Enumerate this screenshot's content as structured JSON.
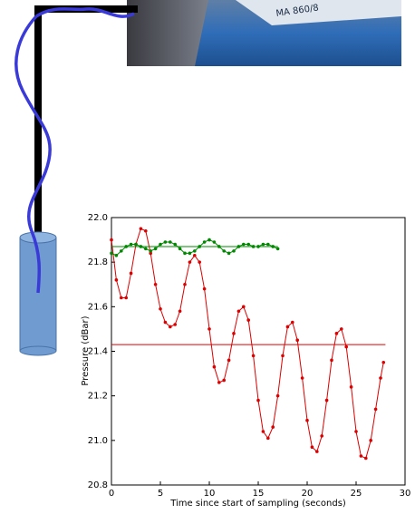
{
  "photo_label": "MA 860/8",
  "chart_data": {
    "type": "line",
    "xlabel": "Time since start of sampling (seconds)",
    "ylabel": "Pressure (dBar)",
    "xlim": [
      0,
      30
    ],
    "xticks": [
      0,
      5,
      10,
      15,
      20,
      25,
      30
    ],
    "ylim": [
      20.8,
      22.0
    ],
    "yticks": [
      20.8,
      {
        "value": 21,
        "label": "21.0"
      },
      21.2,
      21.4,
      21.6,
      21.8,
      {
        "value": 22,
        "label": "22.0"
      }
    ],
    "grid": false,
    "series": [
      {
        "color": "#dd0000",
        "markers": true,
        "x": [
          0,
          0.5,
          1,
          1.5,
          2,
          2.5,
          3,
          3.5,
          4,
          4.5,
          5,
          5.5,
          6,
          6.5,
          7,
          7.5,
          8,
          8.5,
          9,
          9.5,
          10,
          10.5,
          11,
          11.5,
          12,
          12.5,
          13,
          13.5,
          14,
          14.5,
          15,
          15.5,
          16,
          16.5,
          17,
          17.5,
          18,
          18.5,
          19,
          19.5,
          20,
          20.5,
          21,
          21.5,
          22,
          22.5,
          23,
          23.5,
          24,
          24.5,
          25,
          25.5,
          26,
          26.5,
          27,
          27.5,
          27.8
        ],
        "values": [
          21.9,
          21.72,
          21.64,
          21.64,
          21.75,
          21.88,
          21.95,
          21.94,
          21.84,
          21.7,
          21.59,
          21.53,
          21.51,
          21.52,
          21.58,
          21.7,
          21.8,
          21.83,
          21.8,
          21.68,
          21.5,
          21.33,
          21.26,
          21.27,
          21.36,
          21.48,
          21.58,
          21.6,
          21.54,
          21.38,
          21.18,
          21.04,
          21.01,
          21.06,
          21.2,
          21.38,
          21.51,
          21.53,
          21.45,
          21.28,
          21.09,
          20.97,
          20.95,
          21.02,
          21.18,
          21.36,
          21.48,
          21.5,
          21.42,
          21.24,
          21.04,
          20.93,
          20.92,
          21.0,
          21.14,
          21.28,
          21.35
        ]
      },
      {
        "color": "#dd0000",
        "markers": false,
        "x": [
          0,
          28
        ],
        "values": [
          21.43,
          21.43
        ]
      },
      {
        "color": "#008800",
        "markers": true,
        "x": [
          0,
          0.5,
          1,
          1.5,
          2,
          2.5,
          3,
          3.5,
          4,
          4.5,
          5,
          5.5,
          6,
          6.5,
          7,
          7.5,
          8,
          8.5,
          9,
          9.5,
          10,
          10.5,
          11,
          11.5,
          12,
          12.5,
          13,
          13.5,
          14,
          14.5,
          15,
          15.5,
          16,
          16.5,
          17
        ],
        "values": [
          21.84,
          21.83,
          21.85,
          21.87,
          21.88,
          21.88,
          21.87,
          21.86,
          21.85,
          21.86,
          21.88,
          21.89,
          21.89,
          21.88,
          21.86,
          21.84,
          21.84,
          21.85,
          21.87,
          21.89,
          21.9,
          21.89,
          21.87,
          21.85,
          21.84,
          21.85,
          21.87,
          21.88,
          21.88,
          21.87,
          21.87,
          21.88,
          21.88,
          21.87,
          21.86
        ]
      },
      {
        "color": "#008800",
        "markers": false,
        "x": [
          0,
          17
        ],
        "values": [
          21.87,
          21.87
        ]
      }
    ]
  }
}
